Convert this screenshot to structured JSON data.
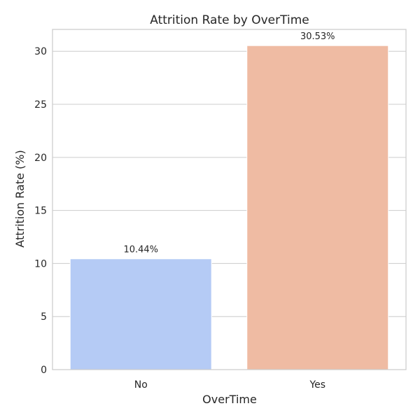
{
  "chart_data": {
    "type": "bar",
    "title": "Attrition Rate by OverTime",
    "xlabel": "OverTime",
    "ylabel": "Attrition Rate (%)",
    "categories": [
      "No",
      "Yes"
    ],
    "values": [
      10.44,
      30.53
    ],
    "data_labels": [
      "10.44%",
      "30.53%"
    ],
    "ylim": [
      0,
      32.06
    ],
    "yticks": [
      0,
      5,
      10,
      15,
      20,
      25,
      30
    ],
    "grid": "horizontal",
    "colors": [
      "#b5cbf5",
      "#efbba3"
    ],
    "frame_color": "#cccccc",
    "grid_color": "#cccccc"
  }
}
